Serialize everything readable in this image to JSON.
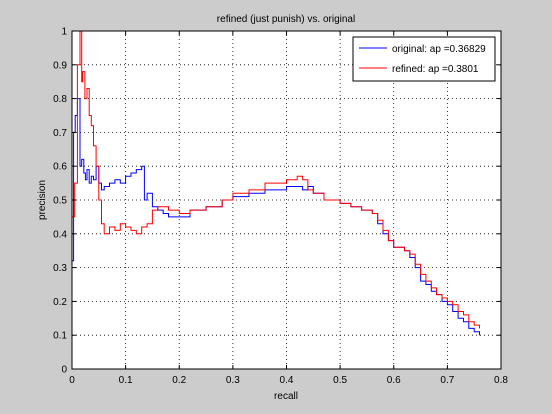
{
  "chart_data": {
    "type": "line",
    "title": "refined (just punish) vs. original",
    "xlabel": "recall",
    "ylabel": "precision",
    "xlim": [
      0,
      0.8
    ],
    "ylim": [
      0,
      1
    ],
    "xticks": [
      0,
      0.1,
      0.2,
      0.3,
      0.4,
      0.5,
      0.6,
      0.7,
      0.8
    ],
    "yticks": [
      0,
      0.1,
      0.2,
      0.3,
      0.4,
      0.5,
      0.6,
      0.7,
      0.8,
      0.9,
      1
    ],
    "xtick_labels": [
      "0",
      "0.1",
      "0.2",
      "0.3",
      "0.4",
      "0.5",
      "0.6",
      "0.7",
      "0.8"
    ],
    "ytick_labels": [
      "0",
      "0.1",
      "0.2",
      "0.3",
      "0.4",
      "0.5",
      "0.6",
      "0.7",
      "0.8",
      "0.9",
      "1"
    ],
    "grid": true,
    "legend_position": "top-right",
    "series": [
      {
        "name": "original: ap =0.36829",
        "color": "#0000ff",
        "x": [
          0.0,
          0.003,
          0.006,
          0.01,
          0.015,
          0.018,
          0.022,
          0.025,
          0.028,
          0.032,
          0.036,
          0.04,
          0.045,
          0.05,
          0.055,
          0.06,
          0.07,
          0.08,
          0.09,
          0.1,
          0.11,
          0.12,
          0.13,
          0.135,
          0.14,
          0.15,
          0.16,
          0.17,
          0.18,
          0.2,
          0.22,
          0.25,
          0.28,
          0.3,
          0.33,
          0.36,
          0.4,
          0.42,
          0.43,
          0.44,
          0.45,
          0.47,
          0.5,
          0.52,
          0.54,
          0.56,
          0.57,
          0.58,
          0.59,
          0.6,
          0.62,
          0.63,
          0.64,
          0.65,
          0.66,
          0.67,
          0.68,
          0.69,
          0.7,
          0.71,
          0.72,
          0.73,
          0.74,
          0.75,
          0.76
        ],
        "y": [
          0.32,
          0.7,
          0.75,
          0.8,
          0.6,
          0.62,
          0.58,
          0.56,
          0.59,
          0.55,
          0.57,
          0.56,
          0.6,
          0.55,
          0.53,
          0.54,
          0.55,
          0.56,
          0.55,
          0.57,
          0.58,
          0.59,
          0.6,
          0.5,
          0.52,
          0.48,
          0.47,
          0.46,
          0.45,
          0.45,
          0.47,
          0.48,
          0.5,
          0.51,
          0.52,
          0.53,
          0.54,
          0.54,
          0.53,
          0.54,
          0.52,
          0.5,
          0.49,
          0.48,
          0.47,
          0.46,
          0.43,
          0.4,
          0.38,
          0.36,
          0.35,
          0.33,
          0.3,
          0.26,
          0.25,
          0.23,
          0.22,
          0.2,
          0.19,
          0.17,
          0.15,
          0.14,
          0.12,
          0.11,
          0.1
        ]
      },
      {
        "name": "refined: ap =0.3801",
        "color": "#ff0000",
        "x": [
          0.0,
          0.005,
          0.01,
          0.015,
          0.018,
          0.02,
          0.024,
          0.028,
          0.032,
          0.036,
          0.04,
          0.045,
          0.05,
          0.055,
          0.06,
          0.07,
          0.08,
          0.09,
          0.1,
          0.11,
          0.12,
          0.13,
          0.14,
          0.15,
          0.16,
          0.18,
          0.2,
          0.22,
          0.25,
          0.28,
          0.3,
          0.33,
          0.36,
          0.4,
          0.42,
          0.43,
          0.44,
          0.45,
          0.47,
          0.5,
          0.52,
          0.54,
          0.56,
          0.57,
          0.58,
          0.59,
          0.6,
          0.62,
          0.63,
          0.64,
          0.65,
          0.66,
          0.67,
          0.68,
          0.69,
          0.7,
          0.71,
          0.72,
          0.73,
          0.74,
          0.75,
          0.76
        ],
        "y": [
          0.45,
          0.55,
          0.9,
          1.0,
          0.85,
          0.88,
          0.8,
          0.83,
          0.75,
          0.72,
          0.66,
          0.6,
          0.5,
          0.43,
          0.4,
          0.42,
          0.41,
          0.43,
          0.42,
          0.41,
          0.4,
          0.42,
          0.43,
          0.47,
          0.48,
          0.47,
          0.46,
          0.47,
          0.48,
          0.5,
          0.52,
          0.53,
          0.55,
          0.56,
          0.57,
          0.56,
          0.53,
          0.52,
          0.5,
          0.49,
          0.48,
          0.47,
          0.46,
          0.44,
          0.41,
          0.38,
          0.36,
          0.35,
          0.34,
          0.31,
          0.28,
          0.26,
          0.24,
          0.22,
          0.21,
          0.2,
          0.19,
          0.17,
          0.16,
          0.14,
          0.13,
          0.12
        ]
      }
    ]
  }
}
